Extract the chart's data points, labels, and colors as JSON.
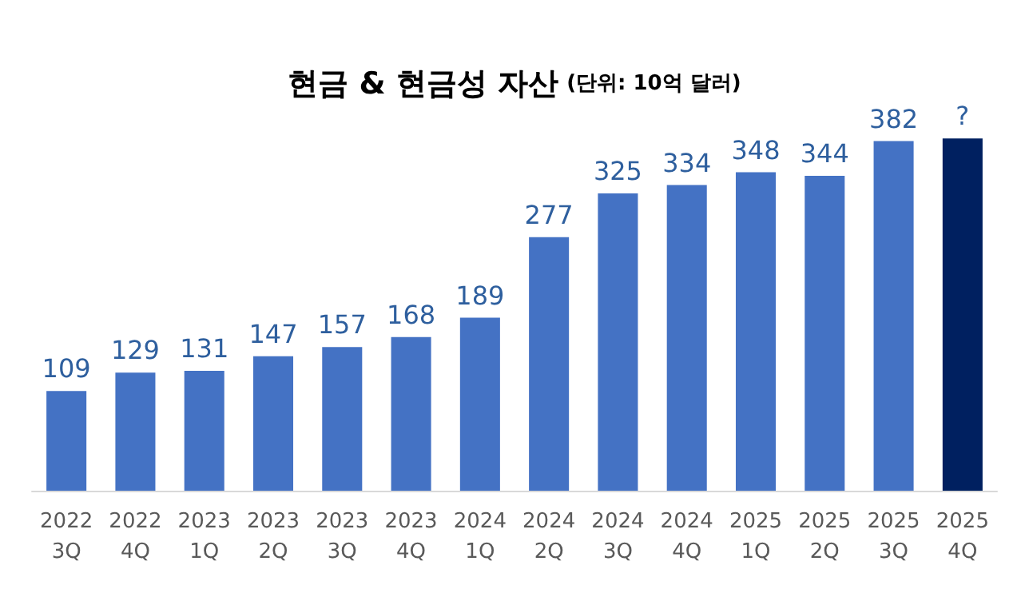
{
  "chart_data": {
    "type": "bar",
    "title": "현금 & 현금성 자산",
    "subtitle": "(단위: 10억 달러)",
    "categories": [
      "2022\n3Q",
      "2022\n4Q",
      "2023\n1Q",
      "2023\n2Q",
      "2023\n3Q",
      "2023\n4Q",
      "2024\n1Q",
      "2024\n2Q",
      "2024\n3Q",
      "2024\n4Q",
      "2025\n1Q",
      "2025\n2Q",
      "2025\n3Q",
      "2025\n4Q"
    ],
    "values": [
      109,
      129,
      131,
      147,
      157,
      168,
      189,
      277,
      325,
      334,
      348,
      344,
      382,
      385
    ],
    "value_labels": [
      "109",
      "129",
      "131",
      "147",
      "157",
      "168",
      "189",
      "277",
      "325",
      "334",
      "348",
      "344",
      "382",
      "?"
    ],
    "colors": [
      "#4472c4",
      "#4472c4",
      "#4472c4",
      "#4472c4",
      "#4472c4",
      "#4472c4",
      "#4472c4",
      "#4472c4",
      "#4472c4",
      "#4472c4",
      "#4472c4",
      "#4472c4",
      "#4472c4",
      "#002060"
    ],
    "grid": false
  }
}
